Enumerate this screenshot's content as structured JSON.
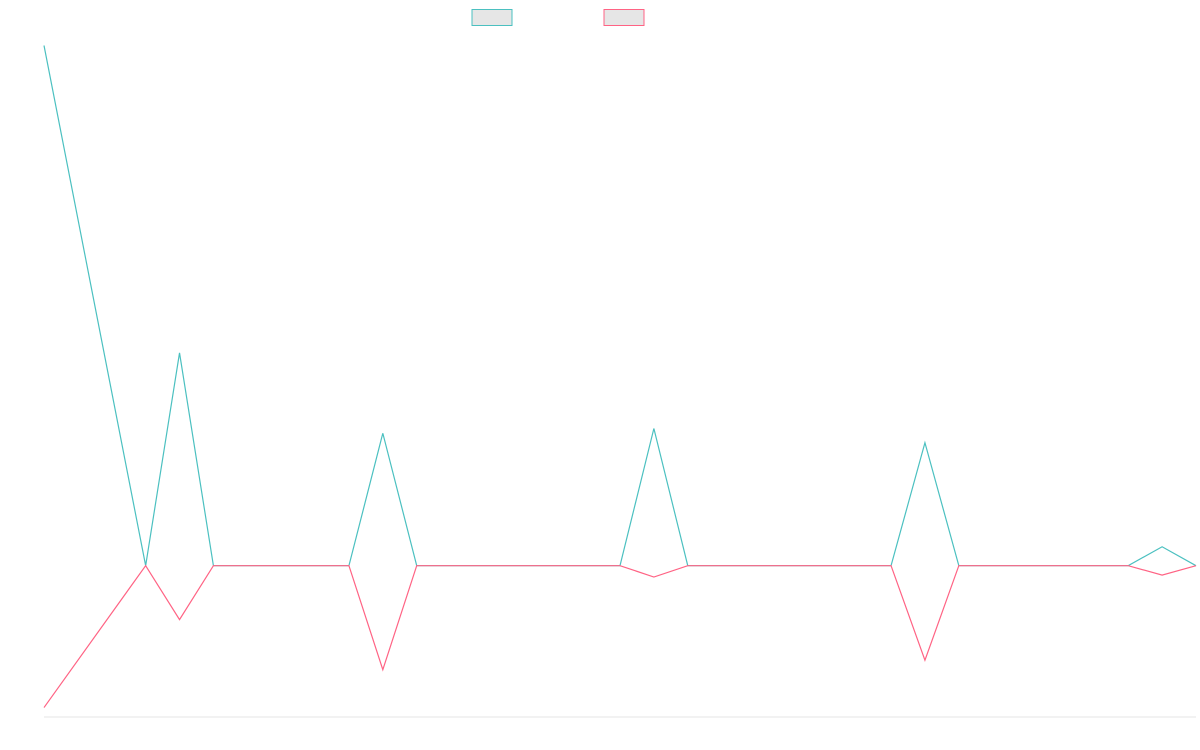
{
  "chart_data": {
    "type": "line",
    "title": "",
    "xlabel": "",
    "ylabel": "",
    "grid": false,
    "legend_position": "top",
    "x": [
      0,
      3,
      4,
      5,
      9,
      10,
      11,
      17,
      18,
      19,
      25,
      26,
      27,
      32,
      33,
      34
    ],
    "ylim": [
      -160,
      560
    ],
    "series": [
      {
        "color": "#4bc0c0",
        "values": [
          550,
          0,
          225,
          0,
          0,
          140,
          0,
          0,
          145,
          0,
          0,
          130,
          0,
          0,
          20,
          0
        ]
      },
      {
        "color": "#ff6384",
        "values": [
          -150,
          0,
          -57,
          0,
          0,
          -110,
          0,
          0,
          -12,
          0,
          0,
          -100,
          0,
          0,
          -10,
          0
        ]
      }
    ]
  }
}
